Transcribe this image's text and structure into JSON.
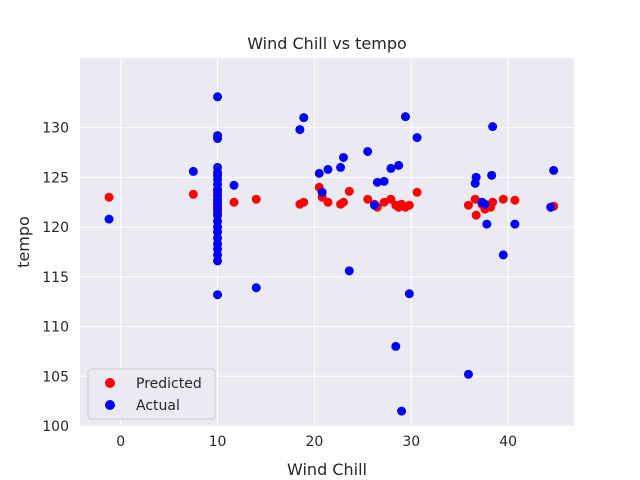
{
  "chart_data": {
    "type": "scatter",
    "title": "Wind Chill vs tempo",
    "xlabel": "Wind Chill",
    "ylabel": "tempo",
    "xlim": [
      -4.2,
      46.8
    ],
    "ylim": [
      100,
      137
    ],
    "xticks": [
      0,
      10,
      20,
      30,
      40
    ],
    "yticks": [
      100,
      105,
      110,
      115,
      120,
      125,
      130
    ],
    "grid": true,
    "legend_position": "lower-left",
    "series": [
      {
        "name": "Predicted",
        "color": "#ff0000",
        "points": [
          [
            -1.2,
            123.0
          ],
          [
            7.5,
            123.3
          ],
          [
            10,
            123.8
          ],
          [
            10,
            123.5
          ],
          [
            10,
            123.1
          ],
          [
            10,
            122.8
          ],
          [
            10,
            122.6
          ],
          [
            10,
            122.3
          ],
          [
            10,
            122.0
          ],
          [
            10,
            121.8
          ],
          [
            10,
            121.5
          ],
          [
            10,
            121.3
          ],
          [
            11.7,
            122.5
          ],
          [
            14.0,
            122.8
          ],
          [
            18.5,
            122.3
          ],
          [
            18.9,
            122.5
          ],
          [
            20.5,
            124.0
          ],
          [
            20.8,
            123.0
          ],
          [
            21.4,
            122.5
          ],
          [
            22.7,
            122.3
          ],
          [
            23.0,
            122.5
          ],
          [
            23.6,
            123.6
          ],
          [
            25.5,
            122.8
          ],
          [
            26.2,
            122.3
          ],
          [
            26.5,
            122.0
          ],
          [
            27.2,
            122.5
          ],
          [
            27.9,
            122.8
          ],
          [
            28.4,
            122.2
          ],
          [
            28.7,
            122.0
          ],
          [
            29.0,
            122.3
          ],
          [
            29.4,
            122.0
          ],
          [
            29.8,
            122.2
          ],
          [
            30.6,
            123.5
          ],
          [
            35.9,
            122.2
          ],
          [
            36.6,
            122.8
          ],
          [
            36.7,
            121.2
          ],
          [
            37.3,
            122.3
          ],
          [
            37.6,
            121.8
          ],
          [
            38.2,
            122.0
          ],
          [
            38.4,
            122.5
          ],
          [
            39.5,
            122.8
          ],
          [
            40.7,
            122.7
          ],
          [
            44.4,
            122.0
          ],
          [
            44.7,
            122.1
          ]
        ]
      },
      {
        "name": "Actual",
        "color": "#0000ff",
        "points": [
          [
            -1.2,
            120.8
          ],
          [
            7.5,
            125.6
          ],
          [
            10,
            133.1
          ],
          [
            10,
            129.2
          ],
          [
            10,
            128.9
          ],
          [
            10,
            126.0
          ],
          [
            10,
            125.5
          ],
          [
            10,
            125.2
          ],
          [
            10,
            124.8
          ],
          [
            10,
            124.3
          ],
          [
            10,
            123.7
          ],
          [
            10,
            123.2
          ],
          [
            10,
            122.7
          ],
          [
            10,
            122.3
          ],
          [
            10,
            121.8
          ],
          [
            10,
            121.2
          ],
          [
            10,
            120.6
          ],
          [
            10,
            120.0
          ],
          [
            10,
            119.5
          ],
          [
            10,
            118.9
          ],
          [
            10,
            118.3
          ],
          [
            10,
            117.8
          ],
          [
            10,
            117.2
          ],
          [
            10,
            116.6
          ],
          [
            10,
            113.2
          ],
          [
            11.7,
            124.2
          ],
          [
            14.0,
            113.9
          ],
          [
            18.5,
            129.8
          ],
          [
            18.9,
            131.0
          ],
          [
            20.5,
            125.4
          ],
          [
            20.8,
            123.5
          ],
          [
            21.4,
            125.8
          ],
          [
            22.7,
            126.0
          ],
          [
            23.0,
            127.0
          ],
          [
            23.6,
            115.6
          ],
          [
            25.5,
            127.6
          ],
          [
            26.2,
            122.2
          ],
          [
            26.5,
            124.5
          ],
          [
            27.2,
            124.6
          ],
          [
            27.9,
            125.9
          ],
          [
            28.4,
            108.0
          ],
          [
            28.7,
            126.2
          ],
          [
            29.0,
            101.5
          ],
          [
            29.4,
            131.1
          ],
          [
            29.8,
            113.3
          ],
          [
            30.6,
            129.0
          ],
          [
            35.9,
            105.2
          ],
          [
            36.6,
            124.4
          ],
          [
            36.7,
            125.0
          ],
          [
            37.3,
            122.5
          ],
          [
            37.6,
            122.3
          ],
          [
            37.8,
            120.3
          ],
          [
            38.3,
            125.2
          ],
          [
            38.4,
            130.1
          ],
          [
            39.5,
            117.2
          ],
          [
            40.7,
            120.3
          ],
          [
            44.4,
            122.0
          ],
          [
            44.7,
            125.7
          ]
        ]
      }
    ]
  }
}
